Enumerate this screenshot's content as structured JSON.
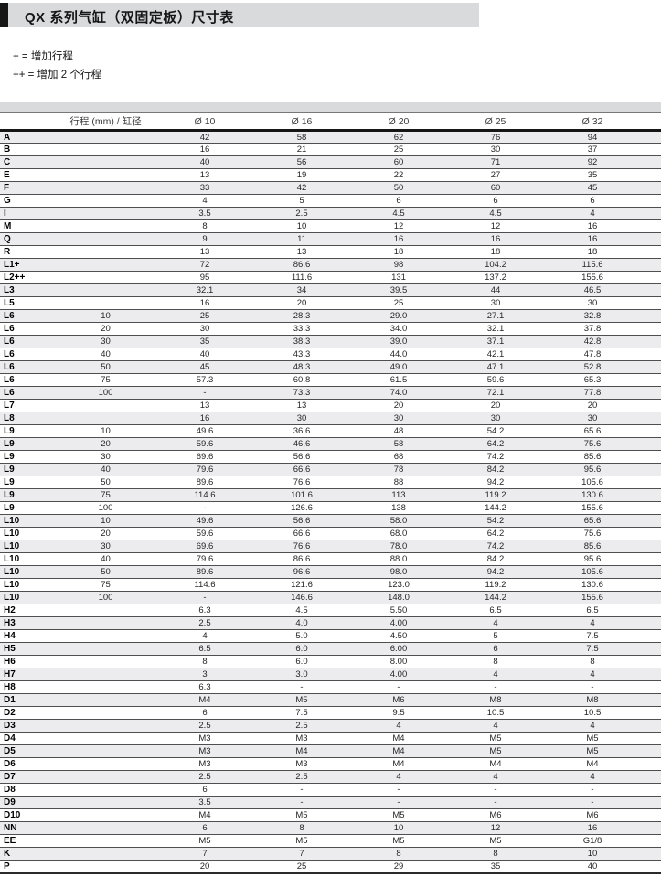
{
  "page": {
    "title": "QX 系列气缸（双固定板）尺寸表",
    "notes": [
      "+ = 增加行程",
      "++ = 增加 2 个行程"
    ]
  },
  "colors": {
    "title_band_gray": "#d9dadc",
    "row_stripe_gray": "#ececee",
    "accent_black": "#161616"
  },
  "table": {
    "header": {
      "stroke_bore_label": "行程 (mm) / 缸径",
      "columns": [
        "Ø 10",
        "Ø 16",
        "Ø 20",
        "Ø 25",
        "Ø 32"
      ]
    },
    "rows": [
      {
        "label": "A",
        "stroke": "",
        "values": [
          "42",
          "58",
          "62",
          "76",
          "94"
        ]
      },
      {
        "label": "B",
        "stroke": "",
        "values": [
          "16",
          "21",
          "25",
          "30",
          "37"
        ]
      },
      {
        "label": "C",
        "stroke": "",
        "values": [
          "40",
          "56",
          "60",
          "71",
          "92"
        ]
      },
      {
        "label": "E",
        "stroke": "",
        "values": [
          "13",
          "19",
          "22",
          "27",
          "35"
        ]
      },
      {
        "label": "F",
        "stroke": "",
        "values": [
          "33",
          "42",
          "50",
          "60",
          "45"
        ]
      },
      {
        "label": "G",
        "stroke": "",
        "values": [
          "4",
          "5",
          "6",
          "6",
          "6"
        ]
      },
      {
        "label": "I",
        "stroke": "",
        "values": [
          "3.5",
          "2.5",
          "4.5",
          "4.5",
          "4"
        ]
      },
      {
        "label": "M",
        "stroke": "",
        "values": [
          "8",
          "10",
          "12",
          "12",
          "16"
        ]
      },
      {
        "label": "Q",
        "stroke": "",
        "values": [
          "9",
          "11",
          "16",
          "16",
          "16"
        ]
      },
      {
        "label": "R",
        "stroke": "",
        "values": [
          "13",
          "13",
          "18",
          "18",
          "18"
        ]
      },
      {
        "label": "L1+",
        "stroke": "",
        "values": [
          "72",
          "86.6",
          "98",
          "104.2",
          "115.6"
        ]
      },
      {
        "label": "L2++",
        "stroke": "",
        "values": [
          "95",
          "111.6",
          "131",
          "137.2",
          "155.6"
        ]
      },
      {
        "label": "L3",
        "stroke": "",
        "values": [
          "32.1",
          "34",
          "39.5",
          "44",
          "46.5"
        ]
      },
      {
        "label": "L5",
        "stroke": "",
        "values": [
          "16",
          "20",
          "25",
          "30",
          "30"
        ]
      },
      {
        "label": "L6",
        "stroke": "10",
        "values": [
          "25",
          "28.3",
          "29.0",
          "27.1",
          "32.8"
        ]
      },
      {
        "label": "L6",
        "stroke": "20",
        "values": [
          "30",
          "33.3",
          "34.0",
          "32.1",
          "37.8"
        ]
      },
      {
        "label": "L6",
        "stroke": "30",
        "values": [
          "35",
          "38.3",
          "39.0",
          "37.1",
          "42.8"
        ]
      },
      {
        "label": "L6",
        "stroke": "40",
        "values": [
          "40",
          "43.3",
          "44.0",
          "42.1",
          "47.8"
        ]
      },
      {
        "label": "L6",
        "stroke": "50",
        "values": [
          "45",
          "48.3",
          "49.0",
          "47.1",
          "52.8"
        ]
      },
      {
        "label": "L6",
        "stroke": "75",
        "values": [
          "57.3",
          "60.8",
          "61.5",
          "59.6",
          "65.3"
        ]
      },
      {
        "label": "L6",
        "stroke": "100",
        "values": [
          "-",
          "73.3",
          "74.0",
          "72.1",
          "77.8"
        ]
      },
      {
        "label": "L7",
        "stroke": "",
        "values": [
          "13",
          "13",
          "20",
          "20",
          "20"
        ]
      },
      {
        "label": "L8",
        "stroke": "",
        "values": [
          "16",
          "30",
          "30",
          "30",
          "30"
        ]
      },
      {
        "label": "L9",
        "stroke": "10",
        "values": [
          "49.6",
          "36.6",
          "48",
          "54.2",
          "65.6"
        ]
      },
      {
        "label": "L9",
        "stroke": "20",
        "values": [
          "59.6",
          "46.6",
          "58",
          "64.2",
          "75.6"
        ]
      },
      {
        "label": "L9",
        "stroke": "30",
        "values": [
          "69.6",
          "56.6",
          "68",
          "74.2",
          "85.6"
        ]
      },
      {
        "label": "L9",
        "stroke": "40",
        "values": [
          "79.6",
          "66.6",
          "78",
          "84.2",
          "95.6"
        ]
      },
      {
        "label": "L9",
        "stroke": "50",
        "values": [
          "89.6",
          "76.6",
          "88",
          "94.2",
          "105.6"
        ]
      },
      {
        "label": "L9",
        "stroke": "75",
        "values": [
          "114.6",
          "101.6",
          "113",
          "119.2",
          "130.6"
        ]
      },
      {
        "label": "L9",
        "stroke": "100",
        "values": [
          "-",
          "126.6",
          "138",
          "144.2",
          "155.6"
        ]
      },
      {
        "label": "L10",
        "stroke": "10",
        "values": [
          "49.6",
          "56.6",
          "58.0",
          "54.2",
          "65.6"
        ]
      },
      {
        "label": "L10",
        "stroke": "20",
        "values": [
          "59.6",
          "66.6",
          "68.0",
          "64.2",
          "75.6"
        ]
      },
      {
        "label": "L10",
        "stroke": "30",
        "values": [
          "69.6",
          "76.6",
          "78.0",
          "74.2",
          "85.6"
        ]
      },
      {
        "label": "L10",
        "stroke": "40",
        "values": [
          "79.6",
          "86.6",
          "88.0",
          "84.2",
          "95.6"
        ]
      },
      {
        "label": "L10",
        "stroke": "50",
        "values": [
          "89.6",
          "96.6",
          "98.0",
          "94.2",
          "105.6"
        ]
      },
      {
        "label": "L10",
        "stroke": "75",
        "values": [
          "114.6",
          "121.6",
          "123.0",
          "119.2",
          "130.6"
        ]
      },
      {
        "label": "L10",
        "stroke": "100",
        "values": [
          "-",
          "146.6",
          "148.0",
          "144.2",
          "155.6"
        ]
      },
      {
        "label": "H2",
        "stroke": "",
        "values": [
          "6.3",
          "4.5",
          "5.50",
          "6.5",
          "6.5"
        ]
      },
      {
        "label": "H3",
        "stroke": "",
        "values": [
          "2.5",
          "4.0",
          "4.00",
          "4",
          "4"
        ]
      },
      {
        "label": "H4",
        "stroke": "",
        "values": [
          "4",
          "5.0",
          "4.50",
          "5",
          "7.5"
        ]
      },
      {
        "label": "H5",
        "stroke": "",
        "values": [
          "6.5",
          "6.0",
          "6.00",
          "6",
          "7.5"
        ]
      },
      {
        "label": "H6",
        "stroke": "",
        "values": [
          "8",
          "6.0",
          "8.00",
          "8",
          "8"
        ]
      },
      {
        "label": "H7",
        "stroke": "",
        "values": [
          "3",
          "3.0",
          "4.00",
          "4",
          "4"
        ]
      },
      {
        "label": "H8",
        "stroke": "",
        "values": [
          "6.3",
          "-",
          "-",
          "-",
          "-"
        ]
      },
      {
        "label": "D1",
        "stroke": "",
        "values": [
          "M4",
          "M5",
          "M6",
          "M8",
          "M8"
        ]
      },
      {
        "label": "D2",
        "stroke": "",
        "values": [
          "6",
          "7.5",
          "9.5",
          "10.5",
          "10.5"
        ]
      },
      {
        "label": "D3",
        "stroke": "",
        "values": [
          "2.5",
          "2.5",
          "4",
          "4",
          "4"
        ]
      },
      {
        "label": "D4",
        "stroke": "",
        "values": [
          "M3",
          "M3",
          "M4",
          "M5",
          "M5"
        ]
      },
      {
        "label": "D5",
        "stroke": "",
        "values": [
          "M3",
          "M4",
          "M4",
          "M5",
          "M5"
        ]
      },
      {
        "label": "D6",
        "stroke": "",
        "values": [
          "M3",
          "M3",
          "M4",
          "M4",
          "M4"
        ]
      },
      {
        "label": "D7",
        "stroke": "",
        "values": [
          "2.5",
          "2.5",
          "4",
          "4",
          "4"
        ]
      },
      {
        "label": "D8",
        "stroke": "",
        "values": [
          "6",
          "-",
          "-",
          "-",
          "-"
        ]
      },
      {
        "label": "D9",
        "stroke": "",
        "values": [
          "3.5",
          "-",
          "-",
          "-",
          "-"
        ]
      },
      {
        "label": "D10",
        "stroke": "",
        "values": [
          "M4",
          "M5",
          "M5",
          "M6",
          "M6"
        ]
      },
      {
        "label": "NN",
        "stroke": "",
        "values": [
          "6",
          "8",
          "10",
          "12",
          "16"
        ]
      },
      {
        "label": "EE",
        "stroke": "",
        "values": [
          "M5",
          "M5",
          "M5",
          "M5",
          "G1/8"
        ]
      },
      {
        "label": "K",
        "stroke": "",
        "values": [
          "7",
          "7",
          "8",
          "8",
          "10"
        ]
      },
      {
        "label": "P",
        "stroke": "",
        "values": [
          "20",
          "25",
          "29",
          "35",
          "40"
        ]
      }
    ]
  }
}
